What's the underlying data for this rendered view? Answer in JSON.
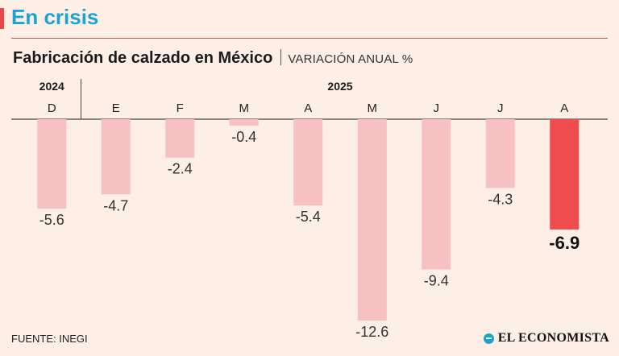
{
  "header": {
    "kicker": "En crisis",
    "title": "Fabricación de calzado en México",
    "subtitle": "VARIACIÓN ANUAL %"
  },
  "footer": {
    "source": "FUENTE: INEGI",
    "brand": "EL ECONOMISTA",
    "brand_icon": "el-economista-logo-icon"
  },
  "colors": {
    "accent": "#e8474b",
    "kicker": "#1aa3d3",
    "bar": "#f7c0c2",
    "highlight_bar": "#ef4c4f",
    "background": "#fdeee6"
  },
  "chart_data": {
    "type": "bar",
    "years": [
      {
        "label": "2024",
        "start_index": 0
      },
      {
        "label": "2025",
        "start_index": 1
      }
    ],
    "categories": [
      "D",
      "E",
      "F",
      "M",
      "A",
      "M",
      "J",
      "J",
      "A"
    ],
    "values": [
      -5.6,
      -4.7,
      -2.4,
      -0.4,
      -5.4,
      -12.6,
      -9.4,
      -4.3,
      -6.9
    ],
    "value_labels": [
      "-5.6",
      "-4.7",
      "-2.4",
      "-0.4",
      "-5.4",
      "-12.6",
      "-9.4",
      "-4.3",
      "-6.9"
    ],
    "highlight_index": 8,
    "ylim": [
      -13,
      0
    ],
    "grid": false,
    "title": "Fabricación de calzado en México",
    "subtitle": "VARIACIÓN ANUAL %"
  }
}
